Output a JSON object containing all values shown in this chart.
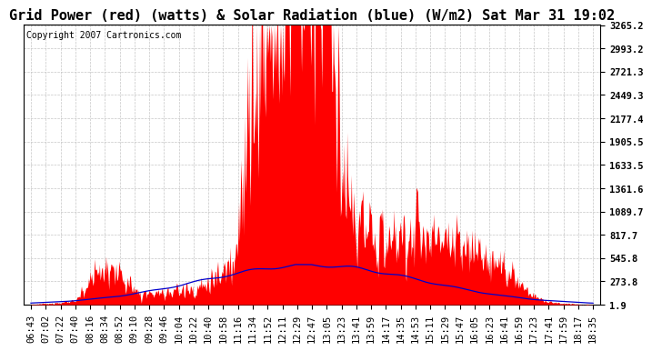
{
  "title": "Grid Power (red) (watts) & Solar Radiation (blue) (W/m2) Sat Mar 31 19:02",
  "copyright_text": "Copyright 2007 Cartronics.com",
  "background_color": "#ffffff",
  "plot_bg_color": "#ffffff",
  "grid_color": "#c0c0c0",
  "red_color": "#ff0000",
  "blue_color": "#0000cc",
  "y_min": 1.9,
  "y_max": 3265.2,
  "y_ticks": [
    1.9,
    273.8,
    545.8,
    817.7,
    1089.7,
    1361.6,
    1633.5,
    1905.5,
    2177.4,
    2449.3,
    2721.3,
    2993.2,
    3265.2
  ],
  "x_labels": [
    "06:43",
    "07:02",
    "07:22",
    "07:40",
    "08:16",
    "08:34",
    "08:52",
    "09:10",
    "09:28",
    "09:46",
    "10:04",
    "10:22",
    "10:40",
    "10:58",
    "11:16",
    "11:34",
    "11:52",
    "12:11",
    "12:29",
    "12:47",
    "13:05",
    "13:23",
    "13:41",
    "13:59",
    "14:17",
    "14:35",
    "14:53",
    "15:11",
    "15:29",
    "15:47",
    "16:05",
    "16:23",
    "16:41",
    "16:59",
    "17:23",
    "17:41",
    "17:59",
    "18:17",
    "18:35"
  ],
  "title_fontsize": 11,
  "tick_fontsize": 7.5,
  "copyright_fontsize": 7
}
